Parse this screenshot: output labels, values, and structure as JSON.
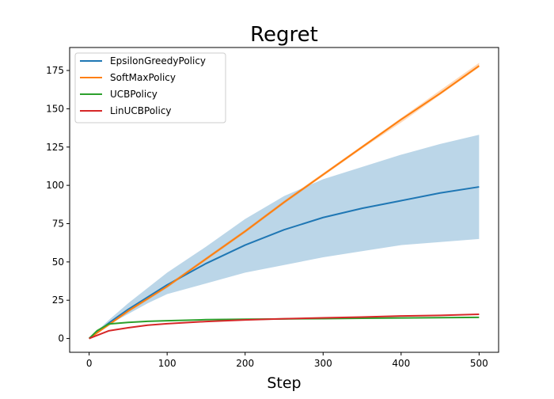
{
  "chart_data": {
    "type": "line",
    "title": "Regret",
    "xlabel": "Step",
    "ylabel": "",
    "xlim": [
      -25,
      525
    ],
    "ylim": [
      -9,
      190
    ],
    "xticks": [
      0,
      100,
      200,
      300,
      400,
      500
    ],
    "yticks": [
      0,
      25,
      50,
      75,
      100,
      125,
      150,
      175
    ],
    "legend_position": "top-left",
    "grid": false,
    "series": [
      {
        "name": "EpsilonGreedyPolicy",
        "color": "#1f77b4",
        "x": [
          0,
          25,
          50,
          75,
          100,
          150,
          200,
          250,
          300,
          350,
          400,
          450,
          500
        ],
        "y": [
          0,
          10,
          19,
          27,
          35,
          49,
          61,
          71,
          79,
          85,
          90,
          95,
          99
        ],
        "band_low": [
          0,
          9,
          16,
          23,
          29,
          36,
          43,
          48,
          53,
          57,
          61,
          63,
          65
        ],
        "band_high": [
          0,
          12,
          23,
          33,
          43,
          60,
          78,
          93,
          104,
          112,
          120,
          127,
          133
        ]
      },
      {
        "name": "SoftMaxPolicy",
        "color": "#ff7f0e",
        "x": [
          0,
          25,
          50,
          75,
          100,
          150,
          200,
          250,
          300,
          350,
          400,
          450,
          500
        ],
        "y": [
          0,
          9,
          18,
          26,
          34,
          52,
          70,
          89,
          107,
          125,
          143,
          160,
          178
        ],
        "band_low": [
          0,
          8,
          17,
          25,
          33,
          51,
          69,
          88,
          106,
          124,
          141,
          159,
          177
        ],
        "band_high": [
          0,
          10,
          19,
          27,
          35,
          53,
          71,
          90,
          108,
          126,
          144,
          162,
          180
        ]
      },
      {
        "name": "UCBPolicy",
        "color": "#2ca02c",
        "x": [
          0,
          10,
          25,
          50,
          75,
          100,
          150,
          200,
          250,
          300,
          350,
          400,
          450,
          500
        ],
        "y": [
          0,
          5,
          9.5,
          10.5,
          11.2,
          11.6,
          12.3,
          12.6,
          12.8,
          13.0,
          13.2,
          13.4,
          13.6,
          13.8
        ]
      },
      {
        "name": "LinUCBPolicy",
        "color": "#d62728",
        "x": [
          0,
          10,
          25,
          50,
          75,
          100,
          150,
          200,
          250,
          300,
          350,
          400,
          450,
          500
        ],
        "y": [
          0,
          2,
          5,
          7,
          8.7,
          9.7,
          11.1,
          12.1,
          12.9,
          13.5,
          14.0,
          14.7,
          15.1,
          15.8
        ]
      }
    ]
  }
}
